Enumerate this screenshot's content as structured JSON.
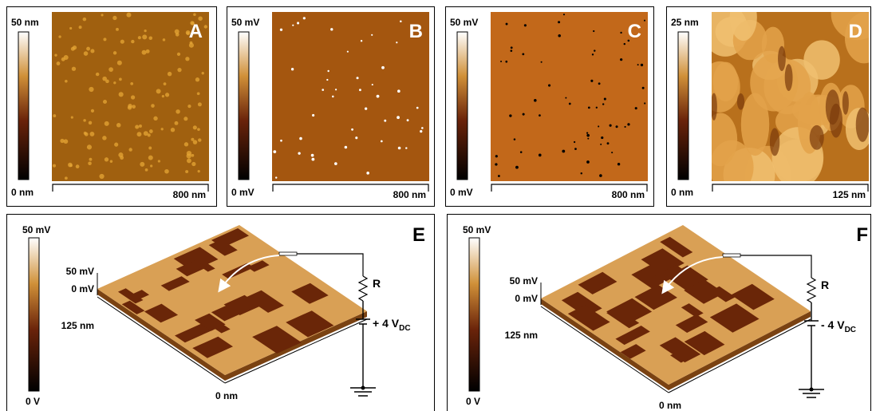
{
  "panels": [
    {
      "label": "A",
      "scale_max": "50 nm",
      "scale_min": "0 nm",
      "scale_bar": "800 nm"
    },
    {
      "label": "B",
      "scale_max": "50 mV",
      "scale_min": "0 mV",
      "scale_bar": "800 nm"
    },
    {
      "label": "C",
      "scale_max": "50 mV",
      "scale_min": "0 mV",
      "scale_bar": "800 nm"
    },
    {
      "label": "D",
      "scale_max": "25 nm",
      "scale_min": "0 nm",
      "scale_bar": "125 nm"
    },
    {
      "label": "E",
      "scale_max": "50 mV",
      "scale_min": "0 V",
      "z_max": "50 mV",
      "z_min": "0 mV",
      "y_axis": "125 nm",
      "x_axis": "0 nm",
      "resistor": "R",
      "voltage": "+ 4 V",
      "voltage_sub": "DC"
    },
    {
      "label": "F",
      "scale_max": "50 mV",
      "scale_min": "0 V",
      "z_max": "50 mV",
      "z_min": "0 mV",
      "y_axis": "125 nm",
      "x_axis": "0 nm",
      "resistor": "R",
      "voltage": "- 4 V",
      "voltage_sub": "DC"
    }
  ]
}
